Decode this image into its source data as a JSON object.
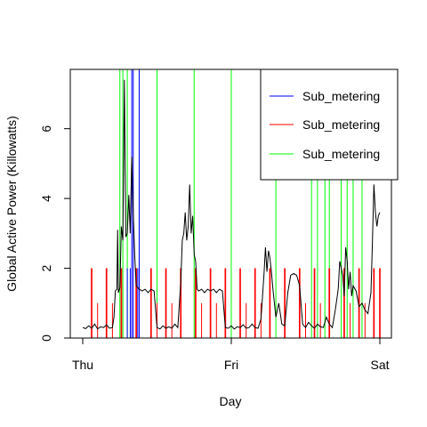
{
  "chart_data": {
    "type": "line",
    "title": "",
    "xlabel": "Day",
    "ylabel": "Global Active Power (Killowatts)",
    "xlim": [
      0,
      2
    ],
    "ylim": [
      0,
      7.7
    ],
    "x_ticks": [
      {
        "value": 0,
        "label": "Thu"
      },
      {
        "value": 1,
        "label": "Fri"
      },
      {
        "value": 2,
        "label": "Sat"
      }
    ],
    "y_ticks": [
      {
        "value": 0,
        "label": "0"
      },
      {
        "value": 2,
        "label": "2"
      },
      {
        "value": 4,
        "label": "4"
      },
      {
        "value": 6,
        "label": "6"
      }
    ],
    "grid": false,
    "legend_position": "top-right",
    "legend": [
      {
        "label": "Sub_metering",
        "color": "#0000ff"
      },
      {
        "label": "Sub_metering",
        "color": "#ff0000"
      },
      {
        "label": "Sub_metering",
        "color": "#00ff00"
      }
    ],
    "series": [
      {
        "color": "#000000",
        "points": [
          [
            0.0,
            0.3
          ],
          [
            0.02,
            0.27
          ],
          [
            0.04,
            0.35
          ],
          [
            0.06,
            0.28
          ],
          [
            0.08,
            0.4
          ],
          [
            0.1,
            0.26
          ],
          [
            0.12,
            0.32
          ],
          [
            0.14,
            0.3
          ],
          [
            0.16,
            0.38
          ],
          [
            0.18,
            0.28
          ],
          [
            0.2,
            0.3
          ],
          [
            0.21,
            0.6
          ],
          [
            0.22,
            1.35
          ],
          [
            0.23,
            1.4
          ],
          [
            0.235,
            3.1
          ],
          [
            0.24,
            1.3
          ],
          [
            0.25,
            1.45
          ],
          [
            0.26,
            3.2
          ],
          [
            0.27,
            2.8
          ],
          [
            0.28,
            7.4
          ],
          [
            0.29,
            2.9
          ],
          [
            0.3,
            3.0
          ],
          [
            0.31,
            4.1
          ],
          [
            0.32,
            3.0
          ],
          [
            0.33,
            5.2
          ],
          [
            0.34,
            3.6
          ],
          [
            0.35,
            2.4
          ],
          [
            0.36,
            1.5
          ],
          [
            0.38,
            1.4
          ],
          [
            0.4,
            1.35
          ],
          [
            0.42,
            1.4
          ],
          [
            0.44,
            1.3
          ],
          [
            0.46,
            1.4
          ],
          [
            0.48,
            1.35
          ],
          [
            0.5,
            0.3
          ],
          [
            0.52,
            0.26
          ],
          [
            0.54,
            0.35
          ],
          [
            0.56,
            0.28
          ],
          [
            0.58,
            0.32
          ],
          [
            0.6,
            0.28
          ],
          [
            0.62,
            0.4
          ],
          [
            0.64,
            0.3
          ],
          [
            0.66,
            1.6
          ],
          [
            0.67,
            2.8
          ],
          [
            0.68,
            3.0
          ],
          [
            0.69,
            3.6
          ],
          [
            0.7,
            2.8
          ],
          [
            0.71,
            3.2
          ],
          [
            0.72,
            4.4
          ],
          [
            0.73,
            3.0
          ],
          [
            0.74,
            3.5
          ],
          [
            0.75,
            2.4
          ],
          [
            0.76,
            2.2
          ],
          [
            0.77,
            1.4
          ],
          [
            0.78,
            1.35
          ],
          [
            0.8,
            1.4
          ],
          [
            0.82,
            1.3
          ],
          [
            0.84,
            1.4
          ],
          [
            0.86,
            1.35
          ],
          [
            0.88,
            1.4
          ],
          [
            0.9,
            1.3
          ],
          [
            0.92,
            1.4
          ],
          [
            0.94,
            1.35
          ],
          [
            0.96,
            0.3
          ],
          [
            0.98,
            0.28
          ],
          [
            1.0,
            0.35
          ],
          [
            1.02,
            0.26
          ],
          [
            1.04,
            0.32
          ],
          [
            1.06,
            0.3
          ],
          [
            1.08,
            0.38
          ],
          [
            1.1,
            0.28
          ],
          [
            1.12,
            0.3
          ],
          [
            1.14,
            0.4
          ],
          [
            1.16,
            0.3
          ],
          [
            1.18,
            0.28
          ],
          [
            1.2,
            0.55
          ],
          [
            1.22,
            1.8
          ],
          [
            1.23,
            2.6
          ],
          [
            1.24,
            1.9
          ],
          [
            1.25,
            2.5
          ],
          [
            1.26,
            2.3
          ],
          [
            1.27,
            1.9
          ],
          [
            1.28,
            1.4
          ],
          [
            1.3,
            0.6
          ],
          [
            1.32,
            1.0
          ],
          [
            1.34,
            0.4
          ],
          [
            1.36,
            0.35
          ],
          [
            1.38,
            1.3
          ],
          [
            1.4,
            1.8
          ],
          [
            1.42,
            1.85
          ],
          [
            1.44,
            1.8
          ],
          [
            1.46,
            1.5
          ],
          [
            1.48,
            0.4
          ],
          [
            1.5,
            0.3
          ],
          [
            1.52,
            0.45
          ],
          [
            1.54,
            0.35
          ],
          [
            1.56,
            0.28
          ],
          [
            1.58,
            0.4
          ],
          [
            1.6,
            0.32
          ],
          [
            1.62,
            0.3
          ],
          [
            1.64,
            0.6
          ],
          [
            1.66,
            0.4
          ],
          [
            1.68,
            0.3
          ],
          [
            1.7,
            0.8
          ],
          [
            1.72,
            1.4
          ],
          [
            1.73,
            2.2
          ],
          [
            1.74,
            2.0
          ],
          [
            1.75,
            1.8
          ],
          [
            1.76,
            1.2
          ],
          [
            1.77,
            2.6
          ],
          [
            1.78,
            2.2
          ],
          [
            1.79,
            1.4
          ],
          [
            1.8,
            1.9
          ],
          [
            1.81,
            1.2
          ],
          [
            1.82,
            1.5
          ],
          [
            1.84,
            1.35
          ],
          [
            1.86,
            0.9
          ],
          [
            1.88,
            1.0
          ],
          [
            1.9,
            0.8
          ],
          [
            1.92,
            0.7
          ],
          [
            1.94,
            1.3
          ],
          [
            1.95,
            2.7
          ],
          [
            1.96,
            4.4
          ],
          [
            1.97,
            3.6
          ],
          [
            1.98,
            3.2
          ],
          [
            1.99,
            3.5
          ],
          [
            2.0,
            3.6
          ]
        ]
      }
    ],
    "sub_metering_spikes": [
      {
        "color": "#00ff00",
        "x": [
          0.25,
          0.27,
          0.3,
          0.38,
          0.5,
          0.75,
          1.0,
          1.3,
          1.54,
          1.58,
          1.63,
          1.66,
          1.74,
          1.78,
          1.82,
          1.88
        ],
        "value": 8.0
      },
      {
        "color": "#0000ff",
        "x": [
          0.33,
          0.34,
          0.38
        ],
        "value": 8.0
      },
      {
        "color": "#0000ff",
        "x": [
          0.3,
          0.32,
          0.36,
          0.37
        ],
        "value": 2.0
      },
      {
        "color": "#ff0000",
        "x": [
          0.06,
          0.16,
          0.26,
          0.36,
          0.46,
          0.56,
          0.66,
          0.76,
          0.86,
          0.96,
          1.06,
          1.16,
          1.26,
          1.36,
          1.46,
          1.56,
          1.66,
          1.76,
          1.86,
          1.96,
          2.0
        ],
        "value": 2.0,
        "width_days": 0.02
      },
      {
        "color": "#ff0000",
        "x": [
          0.1,
          0.2,
          0.5,
          0.6,
          0.8,
          0.9,
          1.1,
          1.2,
          1.5,
          1.6,
          1.8,
          1.9
        ],
        "value": 1.0,
        "width_days": 0.01
      }
    ]
  }
}
